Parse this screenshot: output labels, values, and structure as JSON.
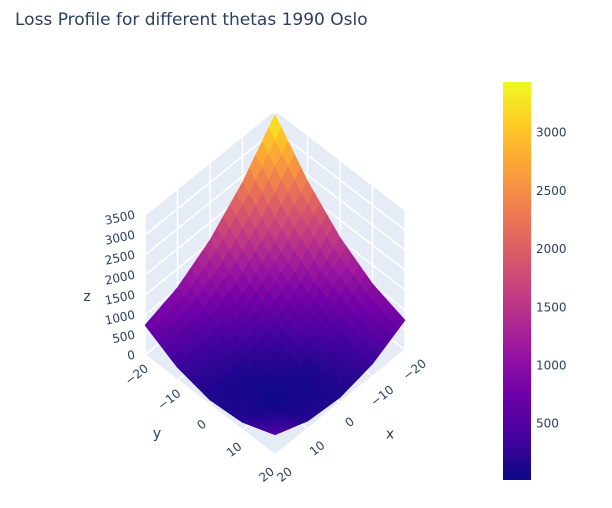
{
  "chart_data": {
    "type": "surface",
    "title": "Loss Profile for different thetas 1990 Oslo",
    "x": [
      -20,
      -10,
      0,
      10,
      20
    ],
    "y": [
      -20,
      -10,
      0,
      10,
      20
    ],
    "z": [
      [
        3384,
        2349,
        1564,
        1029,
        744
      ],
      [
        2349,
        1464,
        829,
        444,
        309
      ],
      [
        1564,
        829,
        344,
        109,
        124
      ],
      [
        1029,
        444,
        109,
        24,
        189
      ],
      [
        744,
        309,
        124,
        189,
        504
      ]
    ],
    "xlim": [
      -20,
      20
    ],
    "ylim": [
      -20,
      20
    ],
    "zlim": [
      0,
      3500
    ],
    "xticks": [
      {
        "value": -20,
        "label": "−20"
      },
      {
        "value": -10,
        "label": "−10"
      },
      0,
      10,
      20
    ],
    "yticks": [
      {
        "value": -20,
        "label": "−20"
      },
      {
        "value": -10,
        "label": "−10"
      },
      0,
      10,
      20
    ],
    "zticks": [
      0,
      500,
      1000,
      1500,
      2000,
      2500,
      3000,
      3500
    ],
    "xlabel": "x",
    "ylabel": "y",
    "zlabel": "z",
    "colorscale": [
      "#0d0887",
      "#46039f",
      "#7201a8",
      "#9c179e",
      "#bd3786",
      "#d8576b",
      "#ed7953",
      "#fb9f3a",
      "#fdca26",
      "#f0f921"
    ],
    "colorbar": {
      "lim": [
        20,
        3440
      ],
      "ticks": [
        500,
        1000,
        1500,
        2000,
        2500,
        3000
      ]
    }
  }
}
